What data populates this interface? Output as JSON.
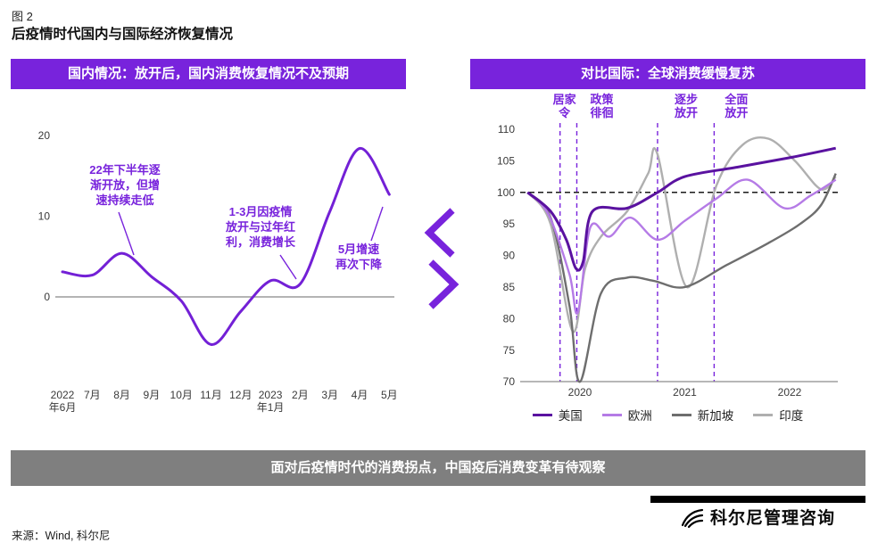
{
  "figure": {
    "label": "图 2",
    "title": "后疫情时代国内与国际经济恢复情况"
  },
  "panels": {
    "domestic": {
      "header": "国内情况：放开后，国内消费恢复情况不及预期"
    },
    "international": {
      "header": "对比国际：全球消费缓慢复苏"
    }
  },
  "banner": "面对后疫情时代的消费拐点，中国疫后消费变革有待观察",
  "source": "来源：Wind, 科尔尼",
  "logo": {
    "text": "科尔尼管理咨询"
  },
  "colors": {
    "brand_purple": "#7823DC",
    "banner_gray": "#7F7F7F",
    "domestic_line": "#7320D6",
    "axis_text": "#3a3a3a"
  },
  "chart_data": [
    {
      "id": "domestic",
      "type": "line",
      "title": "国内情况：放开后，国内消费恢复情况不及预期",
      "categories": [
        "2022年6月",
        "7月",
        "8月",
        "9月",
        "10月",
        "11月",
        "12月",
        "2023年1月",
        "2月",
        "3月",
        "4月",
        "5月"
      ],
      "categories_display": [
        [
          "2022",
          "年6月"
        ],
        [
          "7月"
        ],
        [
          "8月"
        ],
        [
          "9月"
        ],
        [
          "10月"
        ],
        [
          "11月"
        ],
        [
          "12月"
        ],
        [
          "2023",
          "年1月"
        ],
        [
          "2月"
        ],
        [
          "3月"
        ],
        [
          "4月"
        ],
        [
          "5月"
        ]
      ],
      "values": [
        3.1,
        2.7,
        5.4,
        2.5,
        -0.5,
        -5.9,
        -1.8,
        2.0,
        1.6,
        10.6,
        18.4,
        12.7
      ],
      "yticks": [
        20,
        10,
        0
      ],
      "ylim": [
        -10,
        21
      ],
      "annotations": [
        {
          "text": "22年下半年逐渐开放，但增速持续走低",
          "lines": [
            "22年下半年逐",
            "渐开放，但增",
            "速持续走低"
          ],
          "x": 128,
          "y": 95,
          "leader": [
            121,
            138,
            138,
            186
          ]
        },
        {
          "text": "1-3月因疫情放开与过年红利，消费增长",
          "lines": [
            "1-3月因疫情",
            "放开与过年红",
            "利，消费增长"
          ],
          "x": 280,
          "y": 142,
          "leader": [
            302,
            186,
            320,
            213
          ]
        },
        {
          "text": "5月增速再次下降",
          "lines": [
            "5月增速",
            "再次下降"
          ],
          "x": 390,
          "y": 184,
          "leader": [
            404,
            170,
            417,
            132
          ]
        }
      ]
    },
    {
      "id": "international",
      "type": "line",
      "title": "对比国际：全球消费缓慢复苏",
      "xlim": [
        2019.47,
        2022.46
      ],
      "ylim": [
        70,
        110
      ],
      "yticks": [
        110,
        105,
        100,
        95,
        90,
        85,
        80,
        75,
        70
      ],
      "baseline": 100,
      "x_ticks": [
        {
          "t": 2020,
          "label": "2020"
        },
        {
          "t": 2021,
          "label": "2021"
        },
        {
          "t": 2022,
          "label": "2022"
        }
      ],
      "events": [
        {
          "label": "居家令",
          "lines": [
            "居家",
            "令"
          ],
          "t": 2019.81,
          "dx": 5
        },
        {
          "label": "政策徘徊",
          "lines": [
            "政策",
            "徘徊"
          ],
          "t": 2019.97,
          "dx": 28
        },
        {
          "label": "逐步放开",
          "lines": [
            "逐步",
            "放开"
          ],
          "t": 2020.74,
          "dx": 32
        },
        {
          "label": "全面放开",
          "lines": [
            "全面",
            "放开"
          ],
          "t": 2021.28,
          "dx": 25
        }
      ],
      "series": [
        {
          "name": "美国",
          "color": "#5A12A0",
          "x": [
            2019.5,
            2019.72,
            2019.87,
            2019.96,
            2020.03,
            2020.12,
            2020.45,
            2020.74,
            2021.0,
            2021.5,
            2022.0,
            2022.44
          ],
          "y": [
            100,
            97,
            92.5,
            88,
            89,
            97,
            97.5,
            100,
            102.5,
            104,
            105.5,
            107
          ]
        },
        {
          "name": "欧洲",
          "color": "#B57BE6",
          "x": [
            2019.5,
            2019.7,
            2019.9,
            2019.98,
            2020.1,
            2020.28,
            2020.48,
            2020.74,
            2021.0,
            2021.3,
            2021.6,
            2021.95,
            2022.2,
            2022.44
          ],
          "y": [
            100,
            96.5,
            87,
            81,
            94.5,
            93,
            96,
            92.5,
            95.5,
            99,
            102,
            97.5,
            99.5,
            102
          ]
        },
        {
          "name": "新加坡",
          "color": "#6E6E6E",
          "x": [
            2019.5,
            2019.72,
            2019.9,
            2020.0,
            2020.2,
            2020.45,
            2020.7,
            2021.0,
            2021.4,
            2021.8,
            2022.1,
            2022.3,
            2022.44
          ],
          "y": [
            100,
            96,
            82,
            70,
            84,
            86.5,
            86,
            85,
            88.5,
            92,
            95,
            98,
            103
          ]
        },
        {
          "name": "印度",
          "color": "#AFAFAF",
          "x": [
            2019.5,
            2019.72,
            2019.93,
            2020.05,
            2020.2,
            2020.45,
            2020.65,
            2020.74,
            2021.02,
            2021.3,
            2021.55,
            2021.8,
            2022.05,
            2022.3,
            2022.44
          ],
          "y": [
            100,
            95,
            78,
            88,
            93,
            97,
            103,
            106,
            85,
            101,
            107.5,
            108.5,
            105,
            100.5,
            102.5
          ]
        }
      ],
      "legend": [
        "美国",
        "欧洲",
        "新加坡",
        "印度"
      ]
    }
  ]
}
